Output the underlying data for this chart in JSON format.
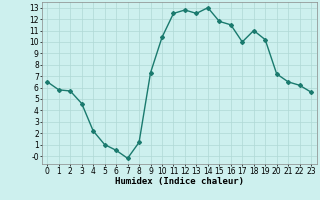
{
  "x": [
    0,
    1,
    2,
    3,
    4,
    5,
    6,
    7,
    8,
    9,
    10,
    11,
    12,
    13,
    14,
    15,
    16,
    17,
    18,
    19,
    20,
    21,
    22,
    23
  ],
  "y": [
    6.5,
    5.8,
    5.7,
    4.6,
    2.2,
    1.0,
    0.5,
    -0.2,
    1.2,
    7.3,
    10.4,
    12.5,
    12.8,
    12.5,
    13.0,
    11.8,
    11.5,
    10.0,
    11.0,
    10.2,
    7.2,
    6.5,
    6.2,
    5.6
  ],
  "line_color": "#1a7a6e",
  "marker": "D",
  "markersize": 2.0,
  "linewidth": 1.0,
  "bg_color": "#cdf0ee",
  "grid_color": "#b0d8d5",
  "xlabel": "Humidex (Indice chaleur)",
  "ylim": [
    -0.7,
    13.5
  ],
  "xlim": [
    -0.5,
    23.5
  ],
  "yticks": [
    0,
    1,
    2,
    3,
    4,
    5,
    6,
    7,
    8,
    9,
    10,
    11,
    12,
    13
  ],
  "ytick_labels": [
    "-0",
    "1",
    "2",
    "3",
    "4",
    "5",
    "6",
    "7",
    "8",
    "9",
    "10",
    "11",
    "12",
    "13"
  ],
  "xticks": [
    0,
    1,
    2,
    3,
    4,
    5,
    6,
    7,
    8,
    9,
    10,
    11,
    12,
    13,
    14,
    15,
    16,
    17,
    18,
    19,
    20,
    21,
    22,
    23
  ],
  "xlabel_fontsize": 6.5,
  "tick_fontsize": 5.5
}
